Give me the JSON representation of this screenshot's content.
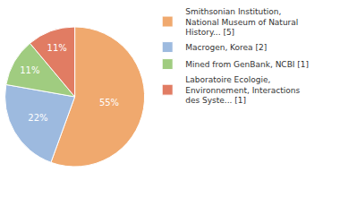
{
  "chart_data": {
    "type": "pie",
    "categories": [
      "Smithsonian Institution, National Museum of Natural History... [5]",
      "Macrogen, Korea [2]",
      "Mined from GenBank, NCBI [1]",
      "Laboratoire Ecologie, Environnement, Interactions des Syste... [1]"
    ],
    "values": [
      55,
      22,
      11,
      11
    ],
    "value_labels": [
      "55%",
      "22%",
      "11%",
      "11%"
    ],
    "data_labels": true,
    "colors": [
      "#f0a96e",
      "#9dbadf",
      "#a0cc80",
      "#e17c63"
    ],
    "legend": "right"
  }
}
